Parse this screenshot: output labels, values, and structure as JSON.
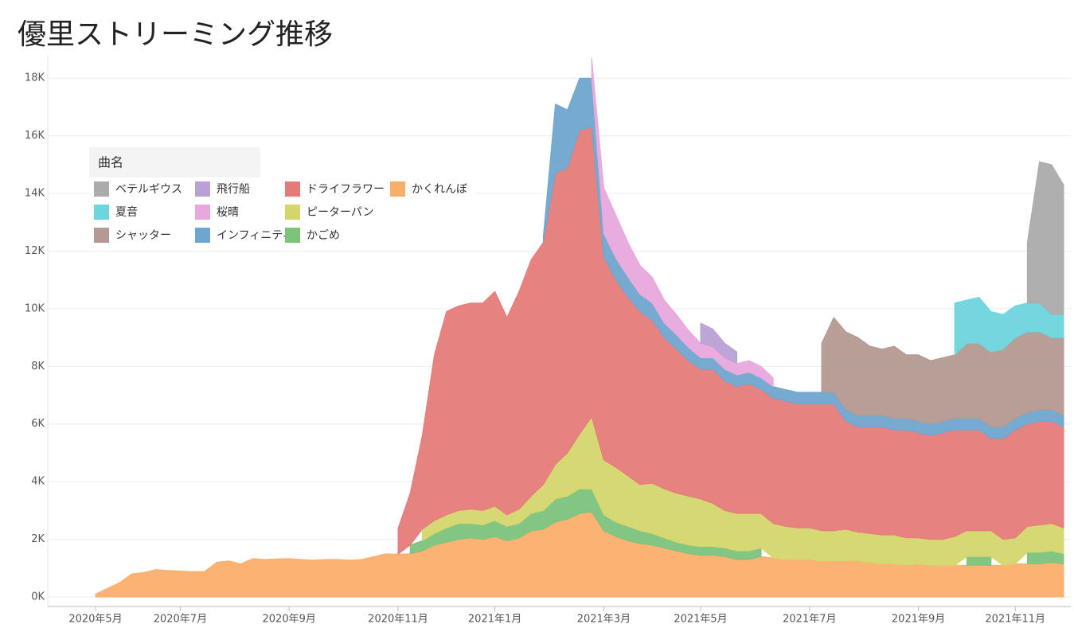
{
  "chart_data": {
    "type": "stacked_area",
    "title": "優里ストリーミング推移",
    "legend_title": "曲名",
    "legend": "upper left",
    "grid": true,
    "ylim": [
      0,
      19000
    ],
    "yticks": [
      {
        "value": 0,
        "label": "0K"
      },
      {
        "value": 2000,
        "label": "2K"
      },
      {
        "value": 4000,
        "label": "4K"
      },
      {
        "value": 6000,
        "label": "6K"
      },
      {
        "value": 8000,
        "label": "8K"
      },
      {
        "value": 10000,
        "label": "10K"
      },
      {
        "value": 12000,
        "label": "12K"
      },
      {
        "value": 14000,
        "label": "14K"
      },
      {
        "value": 16000,
        "label": "16K"
      },
      {
        "value": 18000,
        "label": "18K"
      }
    ],
    "categories": [
      "2020年5月",
      null,
      null,
      null,
      null,
      null,
      null,
      "2020年7月",
      null,
      null,
      null,
      null,
      null,
      null,
      null,
      null,
      "2020年9月",
      null,
      null,
      null,
      null,
      null,
      null,
      null,
      null,
      "2020年11月",
      null,
      null,
      null,
      null,
      null,
      null,
      null,
      "2021年1月",
      null,
      null,
      null,
      null,
      null,
      null,
      null,
      null,
      "2021年3月",
      null,
      null,
      null,
      null,
      null,
      null,
      null,
      "2021年5月",
      null,
      null,
      null,
      null,
      null,
      null,
      null,
      null,
      "2021年7月",
      null,
      null,
      null,
      null,
      null,
      null,
      null,
      null,
      "2021年9月",
      null,
      null,
      null,
      null,
      null,
      null,
      null,
      "2021年11月",
      null,
      null,
      null,
      null
    ],
    "series": [
      {
        "name": "ベテルギウス",
        "color": "#ababab",
        "values": [
          null,
          null,
          null,
          null,
          null,
          null,
          null,
          null,
          null,
          null,
          null,
          null,
          null,
          null,
          null,
          null,
          null,
          null,
          null,
          null,
          null,
          null,
          null,
          null,
          null,
          null,
          null,
          null,
          null,
          null,
          null,
          null,
          null,
          null,
          null,
          null,
          null,
          null,
          null,
          null,
          null,
          null,
          null,
          null,
          null,
          null,
          null,
          null,
          null,
          null,
          null,
          null,
          null,
          null,
          null,
          null,
          null,
          null,
          null,
          null,
          null,
          null,
          null,
          null,
          null,
          null,
          null,
          null,
          null,
          null,
          null,
          null,
          null,
          null,
          null,
          null,
          null,
          2100,
          4900,
          5200,
          4500
        ]
      },
      {
        "name": "夏音",
        "color": "#6dd5dd",
        "values": [
          null,
          null,
          null,
          null,
          null,
          null,
          null,
          null,
          null,
          null,
          null,
          null,
          null,
          null,
          null,
          null,
          null,
          null,
          null,
          null,
          null,
          null,
          null,
          null,
          null,
          null,
          null,
          null,
          null,
          null,
          null,
          null,
          null,
          null,
          null,
          null,
          null,
          null,
          null,
          null,
          null,
          null,
          null,
          null,
          null,
          null,
          null,
          null,
          null,
          null,
          null,
          null,
          null,
          null,
          null,
          null,
          null,
          null,
          null,
          null,
          null,
          null,
          null,
          null,
          null,
          null,
          null,
          null,
          null,
          null,
          null,
          1800,
          1500,
          1600,
          1400,
          1200,
          1100,
          1000,
          1000,
          800,
          800
        ]
      },
      {
        "name": "シャッター",
        "color": "#b39a92",
        "values": [
          null,
          null,
          null,
          null,
          null,
          null,
          null,
          null,
          null,
          null,
          null,
          null,
          null,
          null,
          null,
          null,
          null,
          null,
          null,
          null,
          null,
          null,
          null,
          null,
          null,
          null,
          null,
          null,
          null,
          null,
          null,
          null,
          null,
          null,
          null,
          null,
          null,
          null,
          null,
          null,
          null,
          null,
          null,
          null,
          null,
          null,
          null,
          null,
          null,
          null,
          null,
          null,
          null,
          null,
          null,
          null,
          null,
          null,
          null,
          null,
          1700,
          2600,
          2700,
          2700,
          2400,
          2300,
          2500,
          2200,
          2300,
          2200,
          2200,
          2200,
          2600,
          2600,
          2600,
          2700,
          2800,
          2800,
          2700,
          2500,
          2700
        ]
      },
      {
        "name": "飛行船",
        "color": "#b9a0d5",
        "values": [
          null,
          null,
          null,
          null,
          null,
          null,
          null,
          null,
          null,
          null,
          null,
          null,
          null,
          null,
          null,
          null,
          null,
          null,
          null,
          null,
          null,
          null,
          null,
          null,
          null,
          null,
          null,
          null,
          null,
          null,
          null,
          null,
          null,
          null,
          null,
          null,
          null,
          null,
          null,
          null,
          null,
          null,
          null,
          null,
          null,
          null,
          null,
          null,
          null,
          null,
          700,
          600,
          500,
          400,
          null,
          null,
          null,
          null,
          null,
          null,
          null,
          null,
          null,
          null,
          null,
          null,
          null,
          null,
          null,
          null,
          null,
          null,
          null,
          null,
          null,
          null,
          null,
          null,
          null,
          null,
          null
        ]
      },
      {
        "name": "桜晴",
        "color": "#e8a8dc",
        "values": [
          null,
          null,
          null,
          null,
          null,
          null,
          null,
          null,
          null,
          null,
          null,
          null,
          null,
          null,
          null,
          null,
          null,
          null,
          null,
          null,
          null,
          null,
          null,
          null,
          null,
          null,
          null,
          null,
          null,
          null,
          null,
          null,
          null,
          null,
          null,
          null,
          null,
          null,
          null,
          null,
          null,
          700,
          1600,
          1500,
          1200,
          1000,
          900,
          800,
          700,
          600,
          500,
          400,
          400,
          400,
          400,
          400,
          300,
          null,
          null,
          null,
          null,
          null,
          null,
          null,
          null,
          null,
          null,
          null,
          null,
          null,
          null,
          null,
          null,
          null,
          null,
          null,
          null,
          null,
          null,
          null,
          null
        ]
      },
      {
        "name": "インフィニティ",
        "color": "#6fa5cf",
        "values": [
          null,
          null,
          null,
          null,
          null,
          null,
          null,
          null,
          null,
          null,
          null,
          null,
          null,
          null,
          null,
          null,
          null,
          null,
          null,
          null,
          null,
          null,
          null,
          null,
          null,
          null,
          null,
          null,
          null,
          null,
          null,
          null,
          null,
          null,
          null,
          null,
          null,
          200,
          2400,
          2000,
          1800,
          1700,
          800,
          750,
          700,
          600,
          600,
          500,
          500,
          450,
          400,
          400,
          400,
          400,
          400,
          400,
          400,
          400,
          400,
          400,
          400,
          400,
          400,
          400,
          400,
          400,
          400,
          400,
          400,
          400,
          400,
          400,
          400,
          400,
          400,
          400,
          400,
          400,
          400,
          400,
          400
        ]
      },
      {
        "name": "ドライフラワー",
        "color": "#e57b79",
        "values": [
          null,
          null,
          null,
          null,
          null,
          null,
          null,
          null,
          null,
          null,
          null,
          null,
          null,
          null,
          null,
          null,
          null,
          null,
          null,
          null,
          null,
          null,
          null,
          null,
          null,
          900,
          1800,
          3250,
          5750,
          7050,
          7100,
          7150,
          7200,
          7450,
          6850,
          7550,
          8200,
          8400,
          10100,
          9900,
          10550,
          10050,
          7050,
          6500,
          6200,
          6000,
          5650,
          5250,
          5000,
          4700,
          4500,
          4650,
          4500,
          4400,
          4500,
          4300,
          4350,
          4350,
          4300,
          4300,
          4400,
          4400,
          3750,
          3650,
          3700,
          3750,
          3650,
          3750,
          3650,
          3600,
          3700,
          3700,
          3500,
          3500,
          3200,
          3500,
          3750,
          3550,
          3600,
          3550,
          3500
        ]
      },
      {
        "name": "ピーターパン",
        "color": "#d4d66c",
        "values": [
          null,
          null,
          null,
          null,
          null,
          null,
          null,
          null,
          null,
          null,
          null,
          null,
          null,
          null,
          null,
          null,
          null,
          null,
          null,
          null,
          null,
          null,
          null,
          null,
          null,
          null,
          null,
          400,
          450,
          450,
          450,
          500,
          500,
          500,
          400,
          500,
          600,
          900,
          1200,
          1500,
          1900,
          2500,
          1900,
          1900,
          1750,
          1600,
          1750,
          1700,
          1700,
          1700,
          1650,
          1500,
          1300,
          1300,
          1300,
          1200,
          1200,
          1150,
          1100,
          1100,
          1050,
          1050,
          1100,
          1000,
          1000,
          1000,
          1000,
          950,
          900,
          900,
          900,
          1000,
          900,
          900,
          900,
          900,
          900,
          900,
          950,
          950,
          900
        ]
      },
      {
        "name": "かごめ",
        "color": "#7cc37c",
        "values": [
          null,
          null,
          null,
          null,
          null,
          null,
          null,
          null,
          null,
          null,
          null,
          null,
          null,
          null,
          null,
          null,
          null,
          null,
          null,
          null,
          null,
          null,
          null,
          null,
          null,
          null,
          300,
          350,
          400,
          500,
          550,
          500,
          500,
          550,
          500,
          500,
          600,
          650,
          800,
          800,
          850,
          800,
          550,
          500,
          500,
          450,
          400,
          350,
          300,
          300,
          300,
          300,
          300,
          300,
          300,
          300,
          null,
          null,
          null,
          null,
          null,
          null,
          null,
          null,
          null,
          null,
          null,
          null,
          null,
          null,
          null,
          null,
          300,
          300,
          300,
          null,
          null,
          400,
          400,
          400,
          350
        ]
      },
      {
        "name": "かくれんぼ",
        "color": "#fbae6a",
        "values": [
          100,
          300,
          500,
          800,
          850,
          950,
          920,
          900,
          880,
          880,
          1200,
          1250,
          1150,
          1330,
          1300,
          1320,
          1330,
          1300,
          1280,
          1300,
          1300,
          1280,
          1300,
          1400,
          1500,
          1480,
          1500,
          1600,
          1800,
          1900,
          2000,
          2050,
          2000,
          2100,
          1950,
          2050,
          2300,
          2350,
          2600,
          2700,
          2900,
          2950,
          2300,
          2100,
          1950,
          1850,
          1800,
          1700,
          1600,
          1500,
          1450,
          1450,
          1400,
          1300,
          1300,
          1400,
          1350,
          1300,
          1300,
          1300,
          1250,
          1250,
          1250,
          1250,
          1200,
          1150,
          1150,
          1100,
          1150,
          1100,
          1100,
          1100,
          1100,
          1100,
          1100,
          1100,
          1150,
          1150,
          1150,
          1200,
          1150
        ]
      }
    ]
  }
}
